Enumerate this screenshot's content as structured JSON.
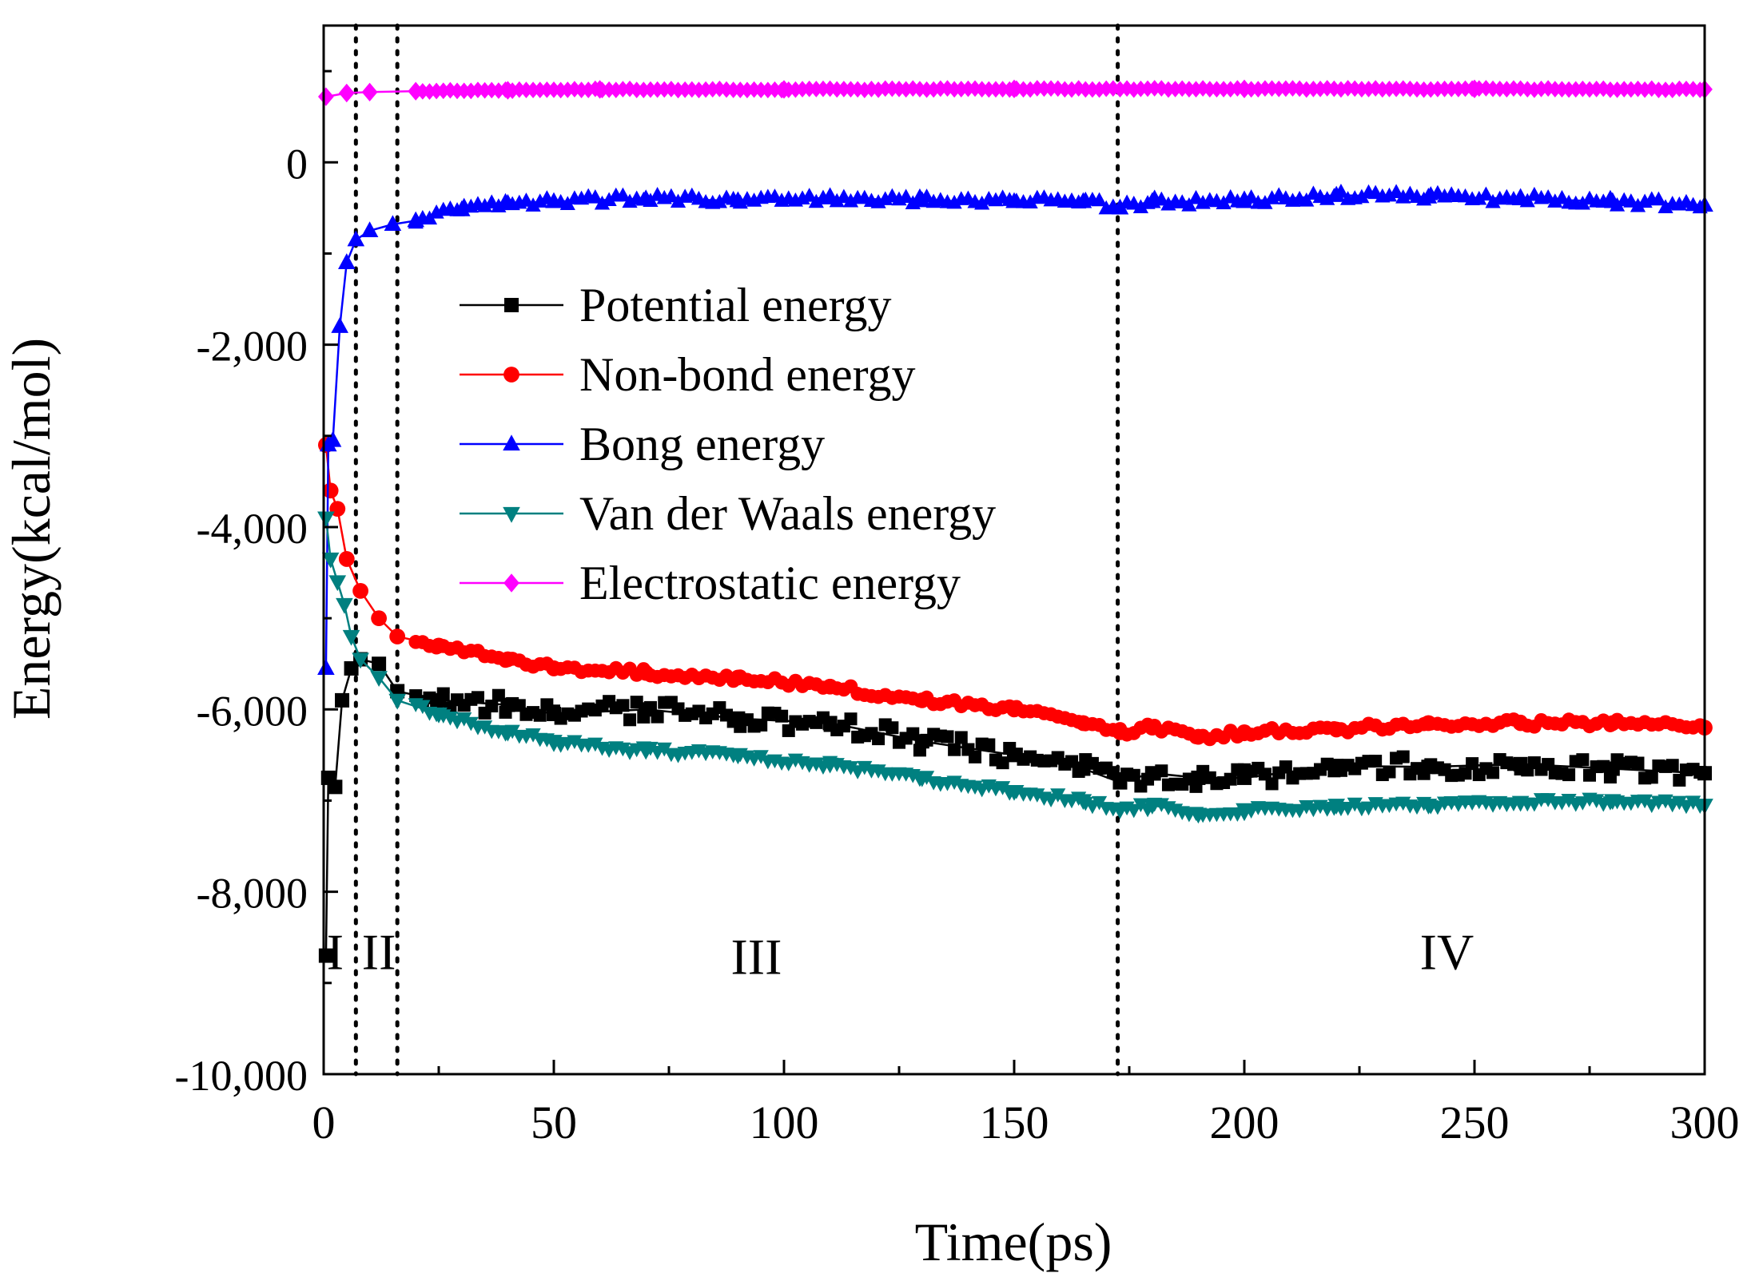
{
  "chart_data": {
    "type": "line",
    "xlabel": "Time(ps)",
    "ylabel": "Energy(kcal/mol)",
    "xlim": [
      0,
      300
    ],
    "ylim": [
      -10000,
      1500
    ],
    "x_ticks": [
      0,
      50,
      100,
      150,
      200,
      250,
      300
    ],
    "x_tick_labels": [
      "0",
      "50",
      "100",
      "150",
      "200",
      "250",
      "300"
    ],
    "y_ticks": [
      -10000,
      -8000,
      -6000,
      -4000,
      -2000,
      0
    ],
    "y_tick_labels": [
      "-10,000",
      "-8,000",
      "-6,000",
      "-4,000",
      "-2,000",
      "0"
    ],
    "legend_position": "center-left",
    "colors": {
      "potential": "#000000",
      "nonbond": "#ff0000",
      "bond": "#0000ff",
      "vdw": "#008080",
      "electrostatic": "#ff00ff"
    },
    "markers": {
      "potential": "square",
      "nonbond": "circle",
      "bond": "triangle-up",
      "vdw": "triangle-down",
      "electrostatic": "diamond"
    },
    "series": [
      {
        "key": "potential",
        "name": "Potential energy",
        "points": [
          [
            0.5,
            -8700
          ],
          [
            1,
            -6750
          ],
          [
            2.5,
            -6850
          ],
          [
            4,
            -5900
          ],
          [
            6,
            -5550
          ],
          [
            8,
            -5450
          ],
          [
            12,
            -5500
          ],
          [
            16,
            -5800
          ],
          [
            25,
            -5900
          ],
          [
            40,
            -5950
          ],
          [
            50,
            -6050
          ],
          [
            70,
            -6000
          ],
          [
            90,
            -6100
          ],
          [
            110,
            -6150
          ],
          [
            130,
            -6350
          ],
          [
            150,
            -6500
          ],
          [
            165,
            -6650
          ],
          [
            173,
            -6800
          ],
          [
            180,
            -6700
          ],
          [
            190,
            -6750
          ],
          [
            200,
            -6750
          ],
          [
            220,
            -6620
          ],
          [
            240,
            -6630
          ],
          [
            260,
            -6600
          ],
          [
            280,
            -6650
          ],
          [
            300,
            -6700
          ]
        ]
      },
      {
        "key": "nonbond",
        "name": "Non-bond energy",
        "points": [
          [
            0.5,
            -3100
          ],
          [
            1.5,
            -3600
          ],
          [
            3,
            -3800
          ],
          [
            5,
            -4350
          ],
          [
            8,
            -4700
          ],
          [
            12,
            -5000
          ],
          [
            16,
            -5200
          ],
          [
            25,
            -5300
          ],
          [
            40,
            -5450
          ],
          [
            50,
            -5550
          ],
          [
            70,
            -5600
          ],
          [
            90,
            -5650
          ],
          [
            110,
            -5750
          ],
          [
            130,
            -5900
          ],
          [
            150,
            -6000
          ],
          [
            165,
            -6150
          ],
          [
            173,
            -6250
          ],
          [
            180,
            -6200
          ],
          [
            190,
            -6300
          ],
          [
            200,
            -6250
          ],
          [
            220,
            -6220
          ],
          [
            240,
            -6150
          ],
          [
            260,
            -6150
          ],
          [
            280,
            -6150
          ],
          [
            300,
            -6200
          ]
        ]
      },
      {
        "key": "bond",
        "name": "Bong energy",
        "points": [
          [
            0.5,
            -5550
          ],
          [
            1,
            -3100
          ],
          [
            2,
            -3050
          ],
          [
            3.5,
            -1800
          ],
          [
            5,
            -1100
          ],
          [
            7,
            -850
          ],
          [
            10,
            -750
          ],
          [
            15,
            -680
          ],
          [
            20,
            -640
          ],
          [
            30,
            -520
          ],
          [
            40,
            -450
          ],
          [
            50,
            -430
          ],
          [
            70,
            -400
          ],
          [
            90,
            -420
          ],
          [
            110,
            -390
          ],
          [
            130,
            -420
          ],
          [
            150,
            -430
          ],
          [
            165,
            -430
          ],
          [
            173,
            -500
          ],
          [
            180,
            -430
          ],
          [
            200,
            -430
          ],
          [
            220,
            -360
          ],
          [
            240,
            -380
          ],
          [
            260,
            -400
          ],
          [
            280,
            -430
          ],
          [
            300,
            -470
          ]
        ]
      },
      {
        "key": "vdw",
        "name": "Van der Waals energy",
        "points": [
          [
            0.5,
            -3900
          ],
          [
            1.5,
            -4350
          ],
          [
            3,
            -4600
          ],
          [
            4.5,
            -4850
          ],
          [
            6,
            -5200
          ],
          [
            8,
            -5450
          ],
          [
            12,
            -5650
          ],
          [
            16,
            -5900
          ],
          [
            25,
            -6050
          ],
          [
            40,
            -6250
          ],
          [
            50,
            -6350
          ],
          [
            70,
            -6450
          ],
          [
            90,
            -6500
          ],
          [
            110,
            -6600
          ],
          [
            130,
            -6750
          ],
          [
            150,
            -6900
          ],
          [
            165,
            -7000
          ],
          [
            173,
            -7100
          ],
          [
            180,
            -7050
          ],
          [
            190,
            -7150
          ],
          [
            200,
            -7100
          ],
          [
            220,
            -7050
          ],
          [
            240,
            -7050
          ],
          [
            260,
            -7020
          ],
          [
            280,
            -7000
          ],
          [
            300,
            -7050
          ]
        ]
      },
      {
        "key": "electrostatic",
        "name": "Electrostatic energy",
        "points": [
          [
            0.5,
            720
          ],
          [
            5,
            760
          ],
          [
            10,
            770
          ],
          [
            20,
            780
          ],
          [
            40,
            790
          ],
          [
            60,
            800
          ],
          [
            100,
            800
          ],
          [
            150,
            805
          ],
          [
            200,
            805
          ],
          [
            250,
            805
          ],
          [
            300,
            800
          ]
        ]
      }
    ],
    "vlines": [
      7,
      16,
      172.5
    ],
    "region_labels": [
      {
        "label": "I",
        "x": 2.5,
        "y": -8850
      },
      {
        "label": "II",
        "x": 12,
        "y": -8850
      },
      {
        "label": "III",
        "x": 94,
        "y": -8900
      },
      {
        "label": "IV",
        "x": 244,
        "y": -8850
      }
    ]
  }
}
